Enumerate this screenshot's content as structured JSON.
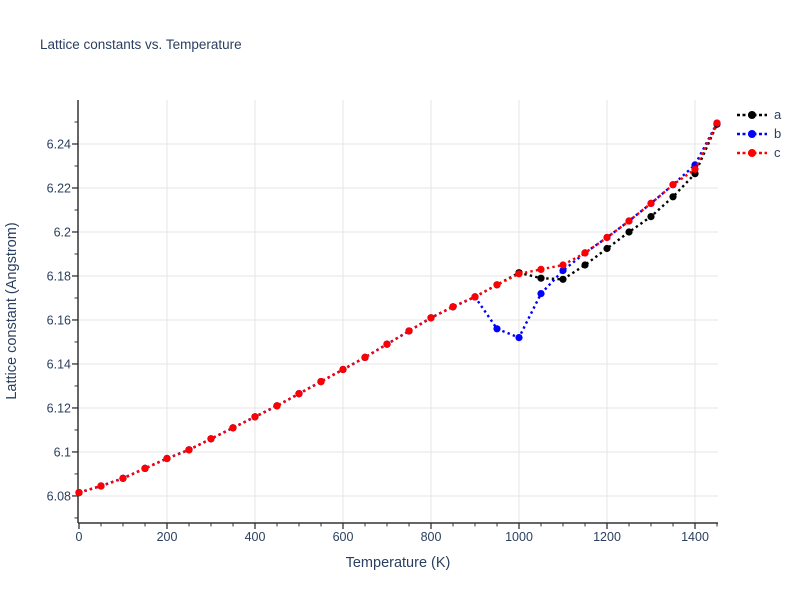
{
  "title": "Lattice constants vs. Temperature",
  "colors": {
    "text": "#2a3f5f",
    "grid": "#e5e5e5",
    "axis": "#333333",
    "background": "#ffffff",
    "series_a": "#000000",
    "series_b": "#0000ff",
    "series_c": "#ff0000"
  },
  "chart_data": {
    "type": "line",
    "title": "Lattice constants vs. Temperature",
    "xlabel": "Temperature (K)",
    "ylabel": "Lattice constant (Angstrom)",
    "line_style": "dotted",
    "marker": "circle",
    "grid": true,
    "legend_position": "top-right-outside",
    "xlim": [
      0,
      1450
    ],
    "ylim": [
      6.068,
      6.26
    ],
    "x_ticks": {
      "values": [
        0,
        200,
        400,
        600,
        800,
        1000,
        1200,
        1400
      ],
      "labels": [
        "0",
        "200",
        "400",
        "600",
        "800",
        "1000",
        "1200",
        "1400"
      ],
      "minor_step": 50
    },
    "y_ticks": {
      "values": [
        6.08,
        6.1,
        6.12,
        6.14,
        6.16,
        6.18,
        6.2,
        6.22,
        6.24
      ],
      "labels": [
        "6.08",
        "6.1",
        "6.12",
        "6.14",
        "6.16",
        "6.18",
        "6.2",
        "6.22",
        "6.24"
      ],
      "minor_step": 0.01
    },
    "x": [
      0,
      50,
      100,
      150,
      200,
      250,
      300,
      350,
      400,
      450,
      500,
      550,
      600,
      650,
      700,
      750,
      800,
      850,
      900,
      950,
      1000,
      1050,
      1100,
      1150,
      1200,
      1250,
      1300,
      1350,
      1400,
      1450
    ],
    "series": [
      {
        "name": "a",
        "color": "#000000",
        "values": [
          6.0815,
          6.0845,
          6.088,
          6.0925,
          6.097,
          6.101,
          6.106,
          6.111,
          6.116,
          6.121,
          6.1265,
          6.132,
          6.1375,
          6.143,
          6.149,
          6.155,
          6.161,
          6.166,
          6.1705,
          6.176,
          6.1815,
          6.179,
          6.1785,
          6.185,
          6.1925,
          6.2,
          6.207,
          6.216,
          6.2265,
          6.249
        ]
      },
      {
        "name": "b",
        "color": "#0000ff",
        "values": [
          6.0815,
          6.0845,
          6.088,
          6.0925,
          6.097,
          6.101,
          6.106,
          6.111,
          6.116,
          6.121,
          6.1265,
          6.132,
          6.1375,
          6.143,
          6.149,
          6.155,
          6.161,
          6.166,
          6.1705,
          6.156,
          6.152,
          6.172,
          6.1825,
          6.1905,
          6.1975,
          6.205,
          6.213,
          6.2215,
          6.2305,
          6.2495
        ]
      },
      {
        "name": "c",
        "color": "#ff0000",
        "values": [
          6.0815,
          6.0845,
          6.088,
          6.0925,
          6.097,
          6.101,
          6.106,
          6.111,
          6.116,
          6.121,
          6.1265,
          6.132,
          6.1375,
          6.143,
          6.149,
          6.155,
          6.161,
          6.166,
          6.1705,
          6.176,
          6.181,
          6.183,
          6.185,
          6.1905,
          6.1975,
          6.205,
          6.213,
          6.2215,
          6.2285,
          6.2495
        ]
      }
    ]
  }
}
